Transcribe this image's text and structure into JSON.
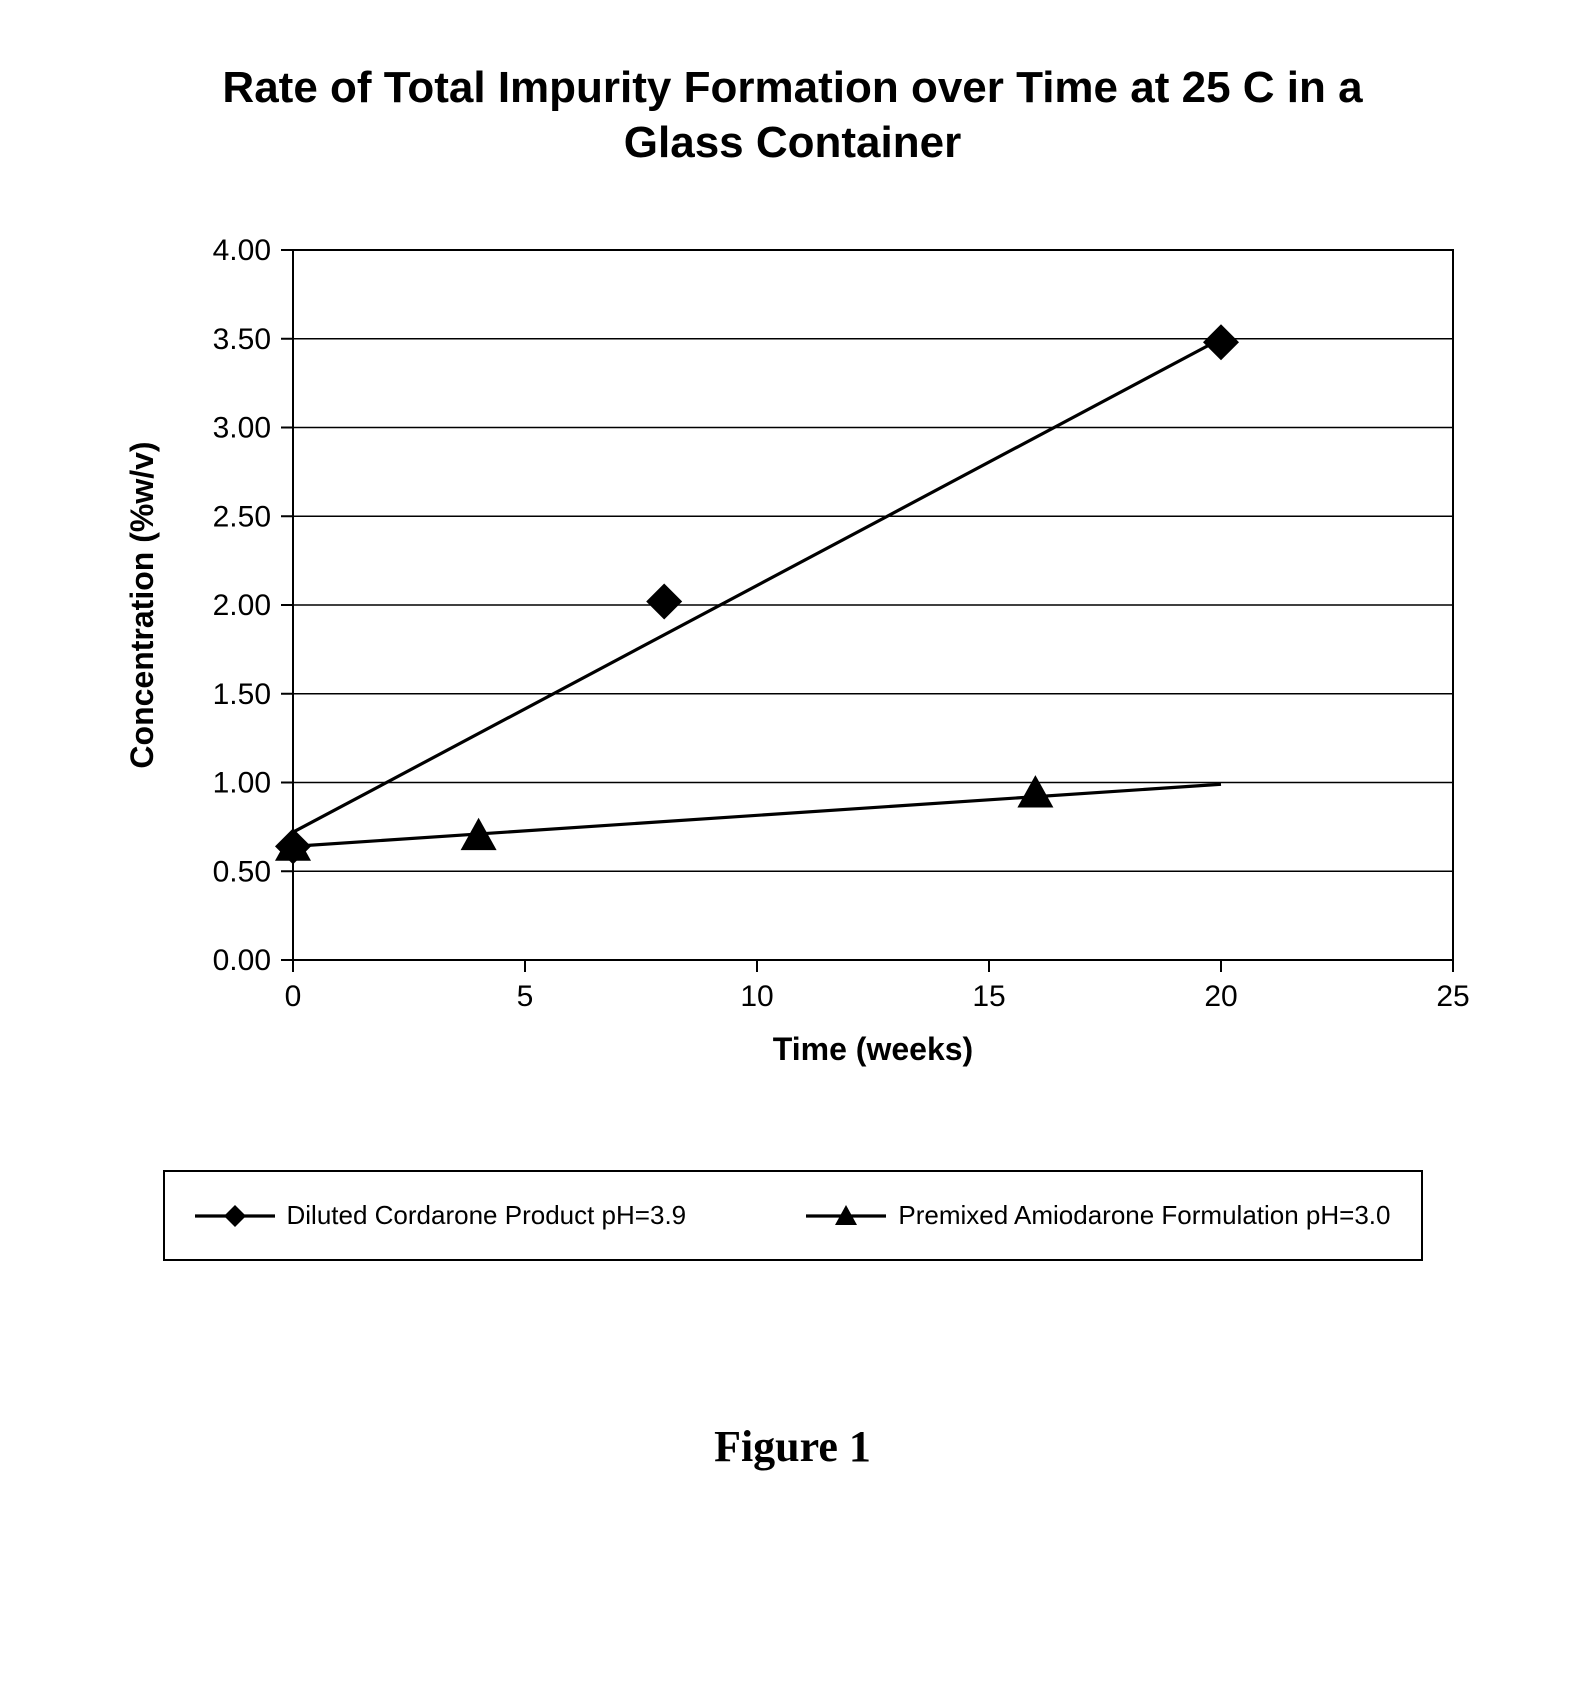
{
  "chart": {
    "type": "scatter-with-lines",
    "title": "Rate of Total Impurity Formation over Time at 25 C in a Glass Container",
    "title_fontsize": 44,
    "title_fontweight": "bold",
    "background_color": "#ffffff",
    "plot_border_color": "#000000",
    "plot_border_width": 2,
    "grid_color": "#000000",
    "grid_width": 1.6,
    "xlabel": "Time (weeks)",
    "ylabel": "Concentration (%w/v)",
    "label_fontsize": 32,
    "label_fontweight": "bold",
    "tick_fontsize": 30,
    "xlim": [
      0,
      25
    ],
    "ylim": [
      0,
      4.0
    ],
    "xticks": [
      0,
      5,
      10,
      15,
      20,
      25
    ],
    "yticks": [
      0.0,
      0.5,
      1.0,
      1.5,
      2.0,
      2.5,
      3.0,
      3.5,
      4.0
    ],
    "series": [
      {
        "name": "Diluted Cordarone Product pH=3.9",
        "marker": "diamond",
        "marker_size": 18,
        "color": "#000000",
        "line_width": 3.2,
        "points": [
          {
            "x": 0,
            "y": 0.64
          },
          {
            "x": 8,
            "y": 2.02
          },
          {
            "x": 20,
            "y": 3.48
          }
        ],
        "trend": {
          "x1": 0,
          "y1": 0.72,
          "x2": 20,
          "y2": 3.5
        }
      },
      {
        "name": "Premixed Amiodarone Formulation pH=3.0",
        "marker": "triangle",
        "marker_size": 18,
        "color": "#000000",
        "line_width": 3.2,
        "points": [
          {
            "x": 0,
            "y": 0.64
          },
          {
            "x": 4,
            "y": 0.7
          },
          {
            "x": 16,
            "y": 0.94
          }
        ],
        "trend": {
          "x1": 0,
          "y1": 0.64,
          "x2": 20,
          "y2": 0.99
        }
      }
    ],
    "caption": "Figure 1"
  }
}
